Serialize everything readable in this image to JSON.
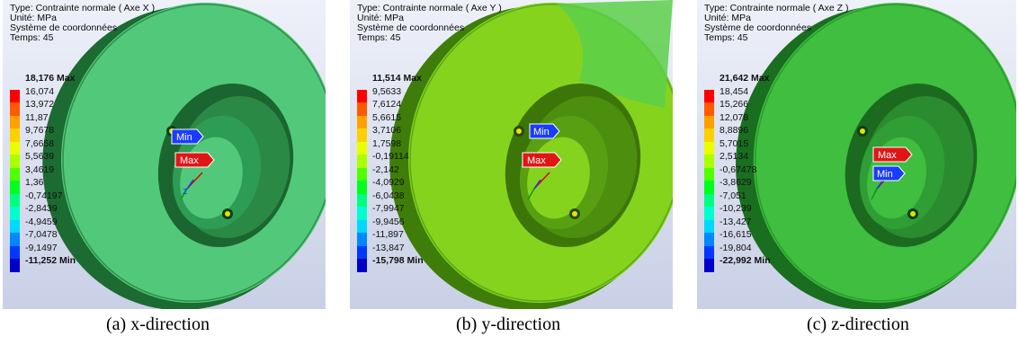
{
  "panels": [
    {
      "info": [
        "Type: Contrainte normale ( Axe X )",
        "Unité: MPa",
        "Système de coordonnées",
        "Temps: 45"
      ],
      "scale": [
        "18,176 Max",
        "16,074",
        "13,972",
        "11,87",
        "9,7678",
        "7,6658",
        "5,5639",
        "3,4619",
        "1,36",
        "-0,74197",
        "-2,8439",
        "-4,9459",
        "-7,0478",
        "-9,1497",
        "-11,252 Min"
      ],
      "disc_color": "#52c97a",
      "caption": "(a) x-direction",
      "max_label": "Max",
      "min_label": "Min"
    },
    {
      "info": [
        "Type: Contrainte normale ( Axe Y )",
        "Unité: MPa",
        "Système de coordonnées",
        "Temps: 45"
      ],
      "scale": [
        "11,514 Max",
        "9,5633",
        "7,6124",
        "5,6615",
        "3,7106",
        "1,7598",
        "-0,19114",
        "-2,142",
        "-4,0929",
        "-6,0438",
        "-7,9947",
        "-9,9456",
        "-11,897",
        "-13,847",
        "-15,798 Min"
      ],
      "disc_color": "#86d31e",
      "caption": "(b) y-direction",
      "max_label": "Max",
      "min_label": "Min"
    },
    {
      "info": [
        "Type: Contrainte normale ( Axe Z )",
        "Unité: MPa",
        "Système de coordonnées",
        "Temps: 45"
      ],
      "scale": [
        "21,642 Max",
        "18,454",
        "15,266",
        "12,078",
        "8,8896",
        "5,7015",
        "2,5134",
        "-0,67478",
        "-3,8629",
        "-7,051",
        "-10,239",
        "-13,427",
        "-16,615",
        "-19,804",
        "-22,992 Min"
      ],
      "disc_color": "#3fbe3f",
      "caption": "(c) z-direction",
      "max_label": "Max",
      "min_label": "Min"
    }
  ],
  "scale_colors": [
    "#ff0000",
    "#ff5a00",
    "#ffa000",
    "#ffd000",
    "#e8ff00",
    "#aaff00",
    "#50ff00",
    "#00ff20",
    "#00ff80",
    "#00ffd0",
    "#00d8ff",
    "#0088ff",
    "#0038ff",
    "#0000c8"
  ]
}
